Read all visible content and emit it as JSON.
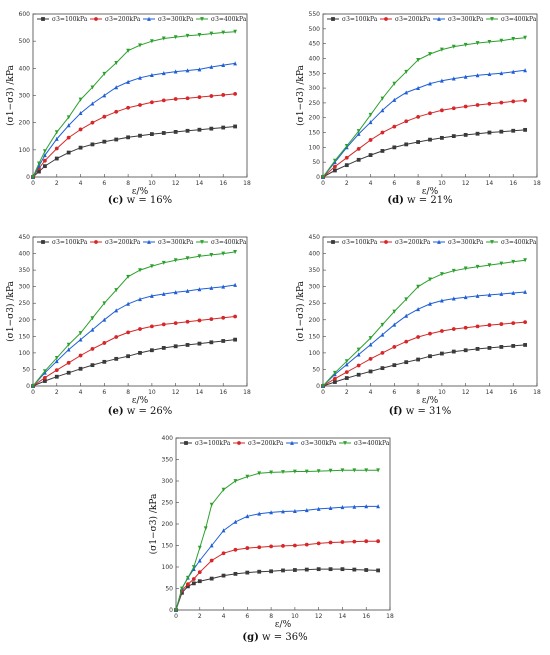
{
  "figure": {
    "colors": {
      "series": [
        "#3a3a3a",
        "#d62728",
        "#1f5fd6",
        "#2ca02c"
      ],
      "axis": "#444444"
    },
    "series_names": [
      "σ3=100kPa",
      "σ3=200kPa",
      "σ3=300kPa",
      "σ3=400kPa"
    ],
    "series_markers": [
      "square",
      "circle",
      "triangle",
      "down-triangle"
    ]
  },
  "chart_data": [
    {
      "type": "line",
      "caption_tag": "(c)",
      "caption_text": "w = 16%",
      "xlabel": "ε/%",
      "ylabel": "(σ1−σ3) /kPa",
      "xlim": [
        0,
        18
      ],
      "ylim": [
        0,
        600
      ],
      "xticks": [
        0,
        2,
        4,
        6,
        8,
        10,
        12,
        14,
        16,
        18
      ],
      "yticks": [
        0,
        100,
        200,
        300,
        400,
        500,
        600
      ],
      "series": [
        {
          "name": "σ3=100kPa",
          "x": [
            0,
            0.5,
            1,
            2,
            3,
            4,
            5,
            6,
            7,
            8,
            9,
            10,
            11,
            12,
            13,
            14,
            15,
            16,
            17
          ],
          "y": [
            0,
            20,
            40,
            68,
            90,
            108,
            120,
            130,
            138,
            146,
            152,
            158,
            162,
            166,
            170,
            174,
            178,
            182,
            186
          ]
        },
        {
          "name": "σ3=200kPa",
          "x": [
            0,
            0.5,
            1,
            2,
            3,
            4,
            5,
            6,
            7,
            8,
            9,
            10,
            11,
            12,
            13,
            14,
            15,
            16,
            17
          ],
          "y": [
            0,
            32,
            60,
            105,
            145,
            175,
            200,
            222,
            240,
            255,
            265,
            275,
            282,
            287,
            290,
            294,
            298,
            302,
            306
          ]
        },
        {
          "name": "σ3=300kPa",
          "x": [
            0,
            0.5,
            1,
            2,
            3,
            4,
            5,
            6,
            7,
            8,
            9,
            10,
            11,
            12,
            13,
            14,
            15,
            16,
            17
          ],
          "y": [
            0,
            40,
            80,
            140,
            190,
            235,
            270,
            300,
            330,
            350,
            365,
            375,
            382,
            388,
            392,
            396,
            405,
            412,
            418
          ]
        },
        {
          "name": "σ3=400kPa",
          "x": [
            0,
            0.5,
            1,
            2,
            3,
            4,
            5,
            6,
            7,
            8,
            9,
            10,
            11,
            12,
            13,
            14,
            15,
            16,
            17
          ],
          "y": [
            0,
            50,
            95,
            165,
            220,
            285,
            330,
            380,
            420,
            465,
            485,
            500,
            510,
            515,
            520,
            523,
            528,
            532,
            535
          ]
        }
      ]
    },
    {
      "type": "line",
      "caption_tag": "(d)",
      "caption_text": "w = 21%",
      "xlabel": "ε/%",
      "ylabel": "(σ1−σ3) /kPa",
      "xlim": [
        0,
        18
      ],
      "ylim": [
        0,
        550
      ],
      "xticks": [
        0,
        2,
        4,
        6,
        8,
        10,
        12,
        14,
        16,
        18
      ],
      "yticks": [
        0,
        50,
        100,
        150,
        200,
        250,
        300,
        350,
        400,
        450,
        500,
        550
      ],
      "series": [
        {
          "name": "σ3=100kPa",
          "x": [
            0,
            1,
            2,
            3,
            4,
            5,
            6,
            7,
            8,
            9,
            10,
            11,
            12,
            13,
            14,
            15,
            16,
            17
          ],
          "y": [
            0,
            22,
            40,
            58,
            74,
            88,
            100,
            110,
            118,
            126,
            132,
            138,
            142,
            146,
            150,
            153,
            156,
            159
          ]
        },
        {
          "name": "σ3=200kPa",
          "x": [
            0,
            1,
            2,
            3,
            4,
            5,
            6,
            7,
            8,
            9,
            10,
            11,
            12,
            13,
            14,
            15,
            16,
            17
          ],
          "y": [
            0,
            35,
            65,
            95,
            125,
            150,
            170,
            188,
            203,
            215,
            225,
            232,
            238,
            243,
            247,
            251,
            255,
            258
          ]
        },
        {
          "name": "σ3=300kPa",
          "x": [
            0,
            1,
            2,
            3,
            4,
            5,
            6,
            7,
            8,
            9,
            10,
            11,
            12,
            13,
            14,
            15,
            16,
            17
          ],
          "y": [
            0,
            50,
            100,
            145,
            185,
            225,
            260,
            285,
            300,
            315,
            325,
            332,
            338,
            343,
            347,
            350,
            355,
            360
          ]
        },
        {
          "name": "σ3=400kPa",
          "x": [
            0,
            1,
            2,
            3,
            4,
            5,
            6,
            7,
            8,
            9,
            10,
            11,
            12,
            13,
            14,
            15,
            16,
            17
          ],
          "y": [
            0,
            55,
            105,
            155,
            210,
            265,
            315,
            355,
            395,
            415,
            430,
            440,
            446,
            452,
            456,
            460,
            466,
            470
          ]
        }
      ]
    },
    {
      "type": "line",
      "caption_tag": "(e)",
      "caption_text": "w = 26%",
      "xlabel": "ε/%",
      "ylabel": "(σ1−σ3) /kPa",
      "xlim": [
        0,
        18
      ],
      "ylim": [
        0,
        450
      ],
      "xticks": [
        0,
        2,
        4,
        6,
        8,
        10,
        12,
        14,
        16,
        18
      ],
      "yticks": [
        0,
        50,
        100,
        150,
        200,
        250,
        300,
        350,
        400,
        450
      ],
      "series": [
        {
          "name": "σ3=100kPa",
          "x": [
            0,
            1,
            2,
            3,
            4,
            5,
            6,
            7,
            8,
            9,
            10,
            11,
            12,
            13,
            14,
            15,
            16,
            17
          ],
          "y": [
            0,
            15,
            28,
            40,
            52,
            63,
            73,
            82,
            90,
            100,
            108,
            115,
            120,
            124,
            128,
            132,
            136,
            140
          ]
        },
        {
          "name": "σ3=200kPa",
          "x": [
            0,
            1,
            2,
            3,
            4,
            5,
            6,
            7,
            8,
            9,
            10,
            11,
            12,
            13,
            14,
            15,
            16,
            17
          ],
          "y": [
            0,
            25,
            48,
            70,
            92,
            112,
            130,
            148,
            162,
            172,
            180,
            186,
            190,
            194,
            198,
            202,
            206,
            210
          ]
        },
        {
          "name": "σ3=300kPa",
          "x": [
            0,
            1,
            2,
            3,
            4,
            5,
            6,
            7,
            8,
            9,
            10,
            11,
            12,
            13,
            14,
            15,
            16,
            17
          ],
          "y": [
            0,
            40,
            75,
            110,
            140,
            170,
            200,
            228,
            248,
            262,
            272,
            278,
            283,
            287,
            292,
            296,
            300,
            305
          ]
        },
        {
          "name": "σ3=400kPa",
          "x": [
            0,
            1,
            2,
            3,
            4,
            5,
            6,
            7,
            8,
            9,
            10,
            11,
            12,
            13,
            14,
            15,
            16,
            17
          ],
          "y": [
            0,
            45,
            85,
            125,
            160,
            205,
            250,
            290,
            330,
            350,
            362,
            372,
            380,
            386,
            392,
            396,
            400,
            405
          ]
        }
      ]
    },
    {
      "type": "line",
      "caption_tag": "(f)",
      "caption_text": "w = 31%",
      "xlabel": "ε/%",
      "ylabel": "(σ1−σ3) /kPa",
      "xlim": [
        0,
        18
      ],
      "ylim": [
        0,
        450
      ],
      "xticks": [
        0,
        2,
        4,
        6,
        8,
        10,
        12,
        14,
        16,
        18
      ],
      "yticks": [
        0,
        50,
        100,
        150,
        200,
        250,
        300,
        350,
        400,
        450
      ],
      "series": [
        {
          "name": "σ3=100kPa",
          "x": [
            0,
            1,
            2,
            3,
            4,
            5,
            6,
            7,
            8,
            9,
            10,
            11,
            12,
            13,
            14,
            15,
            16,
            17
          ],
          "y": [
            0,
            12,
            24,
            34,
            44,
            54,
            63,
            72,
            80,
            90,
            98,
            104,
            108,
            112,
            115,
            118,
            121,
            124
          ]
        },
        {
          "name": "σ3=200kPa",
          "x": [
            0,
            1,
            2,
            3,
            4,
            5,
            6,
            7,
            8,
            9,
            10,
            11,
            12,
            13,
            14,
            15,
            16,
            17
          ],
          "y": [
            0,
            22,
            42,
            62,
            82,
            100,
            118,
            134,
            148,
            158,
            166,
            172,
            176,
            180,
            184,
            187,
            190,
            193
          ]
        },
        {
          "name": "σ3=300kPa",
          "x": [
            0,
            1,
            2,
            3,
            4,
            5,
            6,
            7,
            8,
            9,
            10,
            11,
            12,
            13,
            14,
            15,
            16,
            17
          ],
          "y": [
            0,
            35,
            65,
            95,
            125,
            155,
            185,
            212,
            232,
            248,
            258,
            264,
            268,
            272,
            275,
            278,
            281,
            284
          ]
        },
        {
          "name": "σ3=400kPa",
          "x": [
            0,
            1,
            2,
            3,
            4,
            5,
            6,
            7,
            8,
            9,
            10,
            11,
            12,
            13,
            14,
            15,
            16,
            17
          ],
          "y": [
            0,
            40,
            75,
            110,
            145,
            185,
            225,
            262,
            300,
            322,
            338,
            348,
            355,
            360,
            365,
            370,
            375,
            380
          ]
        }
      ]
    },
    {
      "type": "line",
      "caption_tag": "(g)",
      "caption_text": "w = 36%",
      "xlabel": "ε/%",
      "ylabel": "(σ1−σ3) /kPa",
      "xlim": [
        0,
        18
      ],
      "ylim": [
        0,
        400
      ],
      "xticks": [
        0,
        2,
        4,
        6,
        8,
        10,
        12,
        14,
        16,
        18
      ],
      "yticks": [
        0,
        50,
        100,
        150,
        200,
        250,
        300,
        350,
        400
      ],
      "series": [
        {
          "name": "σ3=100kPa",
          "x": [
            0,
            0.5,
            1,
            1.5,
            2,
            3,
            4,
            5,
            6,
            7,
            8,
            9,
            10,
            11,
            12,
            13,
            14,
            15,
            16,
            17
          ],
          "y": [
            0,
            40,
            55,
            62,
            67,
            73,
            80,
            84,
            87,
            89,
            90,
            92,
            93,
            94,
            95,
            95,
            95,
            94,
            93,
            92
          ]
        },
        {
          "name": "σ3=200kPa",
          "x": [
            0,
            0.5,
            1,
            1.5,
            2,
            3,
            4,
            5,
            6,
            7,
            8,
            9,
            10,
            11,
            12,
            13,
            14,
            15,
            16,
            17
          ],
          "y": [
            0,
            45,
            60,
            72,
            88,
            115,
            132,
            140,
            144,
            146,
            148,
            149,
            150,
            152,
            155,
            157,
            158,
            159,
            160,
            160
          ]
        },
        {
          "name": "σ3=300kPa",
          "x": [
            0,
            0.5,
            1,
            1.5,
            2,
            3,
            4,
            5,
            6,
            7,
            8,
            9,
            10,
            11,
            12,
            13,
            14,
            15,
            16,
            17
          ],
          "y": [
            0,
            50,
            75,
            95,
            115,
            150,
            185,
            205,
            218,
            224,
            227,
            229,
            230,
            232,
            235,
            237,
            239,
            240,
            241,
            241
          ]
        },
        {
          "name": "σ3=400kPa",
          "x": [
            0,
            0.5,
            1,
            1.5,
            2,
            2.5,
            3,
            4,
            5,
            6,
            7,
            8,
            9,
            10,
            11,
            12,
            13,
            14,
            15,
            16,
            17
          ],
          "y": [
            0,
            50,
            75,
            100,
            145,
            190,
            245,
            280,
            300,
            310,
            318,
            320,
            321,
            322,
            322,
            323,
            324,
            325,
            325,
            325,
            325
          ]
        }
      ]
    }
  ]
}
